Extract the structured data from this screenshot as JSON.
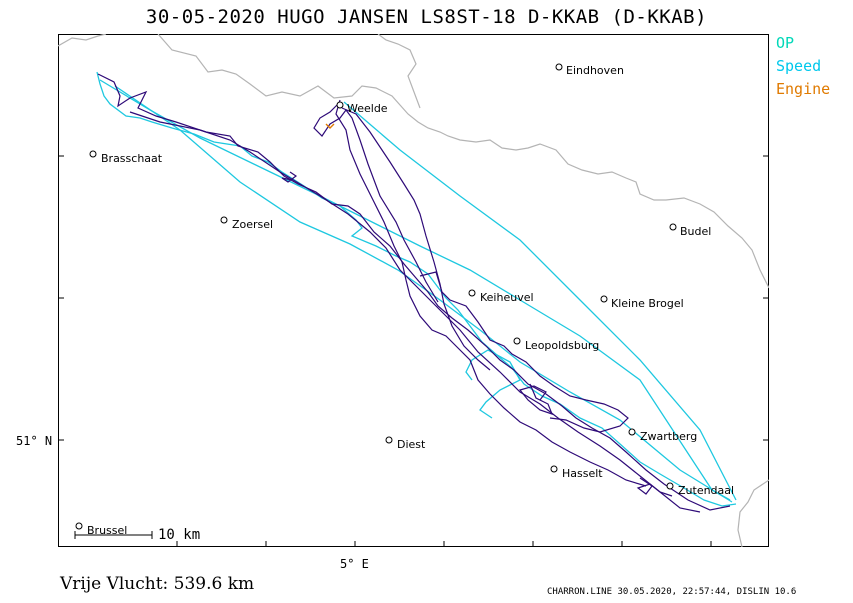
{
  "header": {
    "title": "30-05-2020   HUGO JANSEN   LS8ST-18 D-KKAB (D-KKAB)"
  },
  "legend": {
    "items": [
      {
        "label": "OP",
        "color": "#00d8b8"
      },
      {
        "label": "Speed",
        "color": "#00c8ec"
      },
      {
        "label": "Engine",
        "color": "#e07a00"
      }
    ]
  },
  "cities": [
    {
      "name": "Eindhoven"
    },
    {
      "name": "Weelde"
    },
    {
      "name": "Brasschaat"
    },
    {
      "name": "Zoersel"
    },
    {
      "name": "Budel"
    },
    {
      "name": "Keiheuvel"
    },
    {
      "name": "Kleine Brogel"
    },
    {
      "name": "Leopoldsburg"
    },
    {
      "name": "Zwartberg"
    },
    {
      "name": "Diest"
    },
    {
      "name": "Hasselt"
    },
    {
      "name": "Zutendaal"
    },
    {
      "name": "Brussel"
    }
  ],
  "axes": {
    "lat_label": "51° N",
    "lon_label": "5° E"
  },
  "scale": {
    "label": "10 km"
  },
  "stats": {
    "distance_text": "Vrije Vlucht:  539.6 km"
  },
  "footer": {
    "text": "CHARRON.LINE 30.05.2020, 22:57:44, DISLIN 10.6"
  },
  "colors": {
    "track_dark": "#2e0a78",
    "track_light": "#1ec8e0",
    "border": "#b4b4b4"
  }
}
